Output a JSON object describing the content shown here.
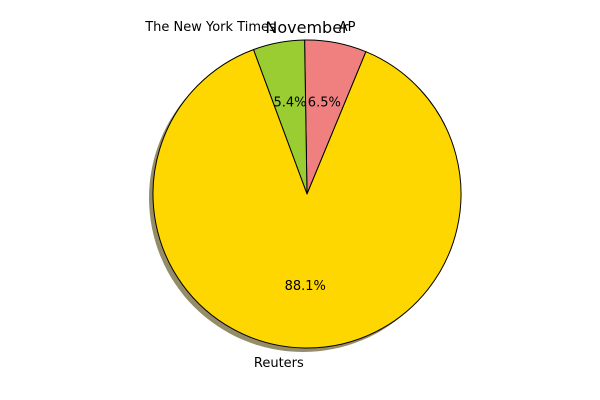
{
  "chart_data": {
    "type": "pie",
    "title": "November",
    "start_angle_deg": 67.5,
    "direction": "counterclockwise",
    "shadow": true,
    "legend": "none",
    "slices": [
      {
        "label": "AP",
        "value": 6.5,
        "pct_label": "6.5%",
        "color": "#f08080"
      },
      {
        "label": "The New York Times",
        "value": 5.4,
        "pct_label": "5.4%",
        "color": "#9acd32"
      },
      {
        "label": "Reuters",
        "value": 88.1,
        "pct_label": "88.1%",
        "color": "#ffd700"
      }
    ]
  }
}
